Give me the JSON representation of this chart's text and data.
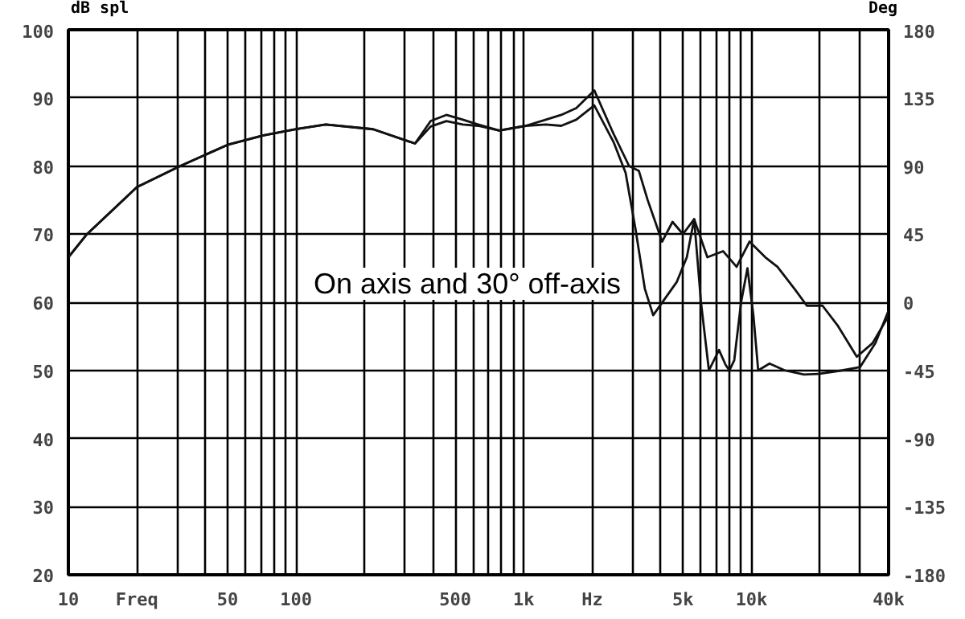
{
  "chart_data": {
    "type": "line",
    "ylabel": "dB spl",
    "y2label": "Deg",
    "annotations": [
      "On axis and 30° off-axis"
    ],
    "log": "x",
    "grid": true,
    "marker": "none",
    "line_style": "solid",
    "xlim": [
      10,
      40000
    ],
    "ylim": [
      20,
      100
    ],
    "y2lim": [
      -180,
      180
    ],
    "xticks": [
      10,
      {
        "value": 20,
        "label": "Freq"
      },
      {
        "value": 30,
        "label": null
      },
      {
        "value": 40,
        "label": null
      },
      50,
      {
        "value": 60,
        "label": null
      },
      {
        "value": 70,
        "label": null
      },
      {
        "value": 80,
        "label": null
      },
      {
        "value": 90,
        "label": null
      },
      100,
      {
        "value": 200,
        "label": null
      },
      {
        "value": 300,
        "label": null
      },
      {
        "value": 400,
        "label": null
      },
      500,
      {
        "value": 600,
        "label": null
      },
      {
        "value": 700,
        "label": null
      },
      {
        "value": 800,
        "label": null
      },
      {
        "value": 900,
        "label": null
      },
      {
        "value": 1000,
        "label": "1k"
      },
      {
        "value": 2000,
        "label": "Hz"
      },
      {
        "value": 3000,
        "label": null
      },
      {
        "value": 4000,
        "label": null
      },
      {
        "value": 5000,
        "label": "5k"
      },
      {
        "value": 6000,
        "label": null
      },
      {
        "value": 7000,
        "label": null
      },
      {
        "value": 8000,
        "label": null
      },
      {
        "value": 9000,
        "label": null
      },
      {
        "value": 10000,
        "label": "10k"
      },
      {
        "value": 20000,
        "label": null
      },
      {
        "value": 30000,
        "label": null
      },
      {
        "value": 40000,
        "label": "40k"
      }
    ],
    "yticks": [
      20,
      30,
      40,
      50,
      60,
      70,
      80,
      90,
      100
    ],
    "y2ticks": [
      -180,
      -135,
      -90,
      -45,
      0,
      45,
      90,
      135,
      180
    ],
    "series": [
      {
        "color": "#111111",
        "x": [
          10,
          12,
          20,
          31,
          50,
          72,
          100,
          135,
          218,
          333,
          390,
          457,
          540,
          630,
          780,
          1020,
          1250,
          1460,
          1700,
          2040,
          2480,
          2900,
          3200,
          3500,
          4050,
          4500,
          5000,
          5600,
          6400,
          7500,
          8600,
          9800,
          11500,
          13000,
          15500,
          17500,
          20500,
          24000,
          29000,
          34000,
          40000
        ],
        "values": [
          66.6,
          69.9,
          76.9,
          80,
          83.1,
          84.5,
          85.4,
          86.1,
          85.4,
          83.3,
          86.6,
          87.5,
          86.8,
          86.1,
          85.2,
          85.9,
          86.8,
          87.5,
          88.5,
          91.1,
          84.7,
          80,
          79.3,
          75,
          68.9,
          71.8,
          70,
          72.2,
          66.6,
          67.5,
          65.2,
          68.9,
          66.6,
          65.2,
          61.9,
          59.5,
          59.5,
          56.5,
          52,
          54,
          58
        ]
      },
      {
        "color": "#111111",
        "x": [
          10,
          12,
          20,
          31,
          50,
          72,
          100,
          135,
          218,
          333,
          390,
          457,
          540,
          630,
          780,
          1020,
          1250,
          1460,
          1700,
          2040,
          2480,
          2800,
          3100,
          3400,
          3700,
          4200,
          4700,
          5200,
          5600,
          6000,
          6500,
          7200,
          7700,
          8000,
          8400,
          9000,
          9600,
          10200,
          10700,
          12000,
          14000,
          17000,
          20000,
          25000,
          30000,
          35000,
          40000
        ],
        "values": [
          66.6,
          69.9,
          76.9,
          80,
          83.1,
          84.5,
          85.4,
          86.1,
          85.4,
          83.3,
          85.8,
          86.6,
          86.1,
          85.9,
          85.2,
          85.9,
          86.1,
          85.9,
          86.8,
          88.9,
          83.5,
          79,
          70.6,
          62,
          58.1,
          60.7,
          63,
          66.6,
          72.2,
          60,
          50,
          53,
          50.8,
          50,
          51.5,
          60,
          65,
          58,
          50,
          51,
          50,
          49.4,
          49.5,
          50,
          50.5,
          54,
          58.8
        ]
      }
    ]
  }
}
